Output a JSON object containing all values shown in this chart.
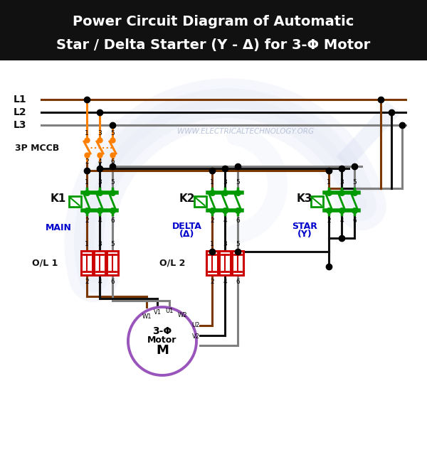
{
  "title_line1": "Power Circuit Diagram of Automatic",
  "title_line2": "Star / Delta Starter (Υ - Δ) for 3-Φ Motor",
  "title_bg": "#111111",
  "title_color": "#ffffff",
  "bg_color": "#ffffff",
  "watermark": "WWW.ELECTRICALTECHNOLOGY.ORG",
  "watermark_color": "#b8c4d8",
  "L1_color": "#7B3800",
  "L2_color": "#111111",
  "L3_color": "#808080",
  "mccb_color": "#FF8000",
  "contactor_green": "#009900",
  "ol_red": "#cc0000",
  "motor_purple": "#9955bb",
  "label_blue": "#0000cc",
  "label_black": "#111111",
  "arc_color": "#d0d8ef"
}
